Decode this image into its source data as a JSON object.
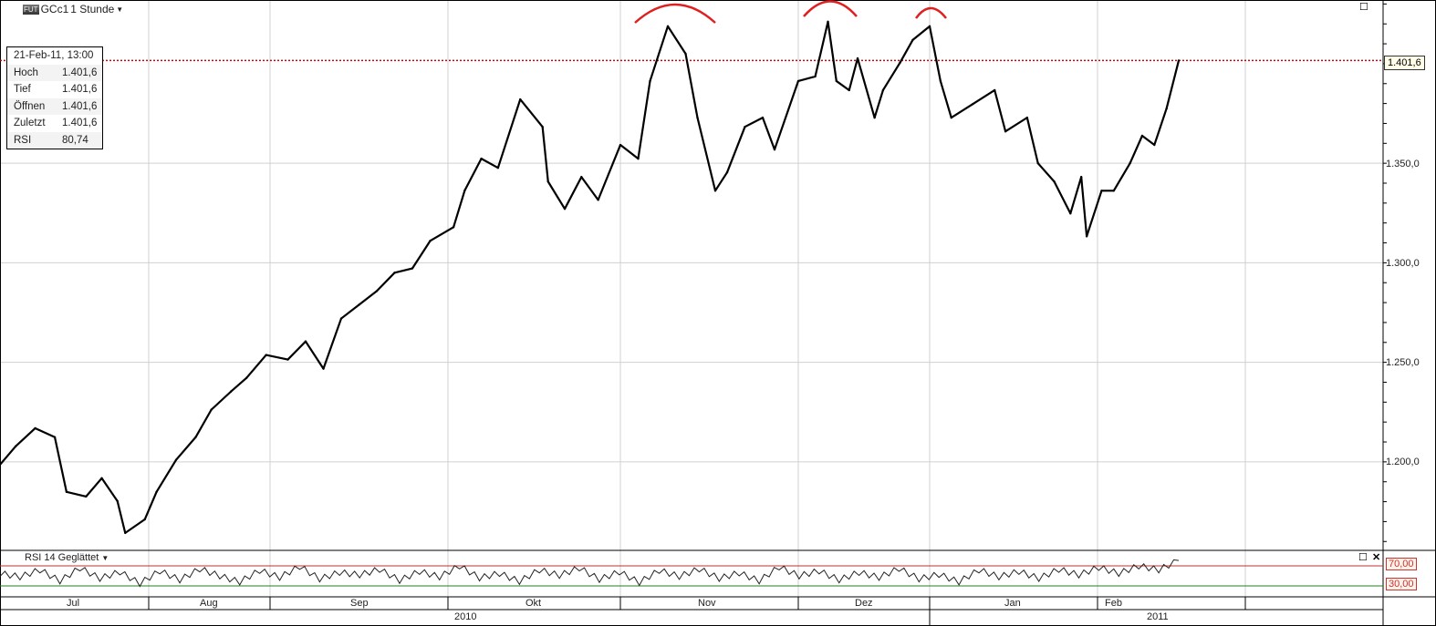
{
  "header": {
    "badge": "FUT",
    "symbol": "GCc1",
    "interval": "1 Stunde"
  },
  "info_box": {
    "date": "21-Feb-11, 13:00",
    "rows": [
      {
        "label": "Hoch",
        "value": "1.401,6"
      },
      {
        "label": "Tief",
        "value": "1.401,6"
      },
      {
        "label": "Öffnen",
        "value": "1.401,6"
      },
      {
        "label": "Zuletzt",
        "value": "1.401,6"
      },
      {
        "label": "RSI",
        "value": "80,74"
      }
    ]
  },
  "last_price_label": "1.401,6",
  "rsi_panel": {
    "title": "RSI 14 Geglättet",
    "upper_label": "70,00",
    "lower_label": "30,00"
  },
  "colors": {
    "price": "#000000",
    "last_line": "#b01010",
    "annotation": "#e02020",
    "rsi_upper": "#c03030",
    "rsi_lower": "#208020",
    "grid": "#d0d0d0"
  },
  "chart_data": {
    "type": "line",
    "ylim": [
      1156,
      1432
    ],
    "yticks": [
      "1.200,0",
      "1.250,0",
      "1.300,0",
      "1.350,0"
    ],
    "ytick_values": [
      1200,
      1250,
      1300,
      1350
    ],
    "months": [
      "Jul",
      "Aug",
      "Sep",
      "Okt",
      "Nov",
      "Dez",
      "Jan",
      "Feb"
    ],
    "years": [
      "2010",
      "2011"
    ],
    "last_price": 1401.6,
    "points": [
      [
        "2010-06-24",
        1198.6
      ],
      [
        "2010-06-28",
        1207.8
      ],
      [
        "2010-07-03",
        1216.9
      ],
      [
        "2010-07-08",
        1212.4
      ],
      [
        "2010-07-11",
        1184.9
      ],
      [
        "2010-07-16",
        1182.6
      ],
      [
        "2010-07-20",
        1191.8
      ],
      [
        "2010-07-24",
        1180.3
      ],
      [
        "2010-07-26",
        1164.3
      ],
      [
        "2010-07-31",
        1171.1
      ],
      [
        "2010-08-03",
        1184.9
      ],
      [
        "2010-08-08",
        1201.0
      ],
      [
        "2010-08-13",
        1212.4
      ],
      [
        "2010-08-17",
        1226.2
      ],
      [
        "2010-08-22",
        1235.3
      ],
      [
        "2010-08-26",
        1242.2
      ],
      [
        "2010-08-31",
        1253.7
      ],
      [
        "2010-09-04",
        1251.4
      ],
      [
        "2010-09-07",
        1260.5
      ],
      [
        "2010-09-10",
        1246.8
      ],
      [
        "2010-09-13",
        1272.0
      ],
      [
        "2010-09-16",
        1278.9
      ],
      [
        "2010-09-19",
        1285.8
      ],
      [
        "2010-09-22",
        1295.0
      ],
      [
        "2010-09-25",
        1297.2
      ],
      [
        "2010-09-28",
        1311.0
      ],
      [
        "2010-10-02",
        1317.9
      ],
      [
        "2010-10-04",
        1336.2
      ],
      [
        "2010-10-07",
        1352.3
      ],
      [
        "2010-10-10",
        1347.7
      ],
      [
        "2010-10-14",
        1382.1
      ],
      [
        "2010-10-18",
        1368.3
      ],
      [
        "2010-10-19",
        1340.8
      ],
      [
        "2010-10-22",
        1327.1
      ],
      [
        "2010-10-25",
        1343.1
      ],
      [
        "2010-10-28",
        1331.6
      ],
      [
        "2010-11-01",
        1359.2
      ],
      [
        "2010-11-04",
        1352.3
      ],
      [
        "2010-11-06",
        1391.3
      ],
      [
        "2010-11-09",
        1418.8
      ],
      [
        "2010-11-12",
        1405.0
      ],
      [
        "2010-11-14",
        1372.9
      ],
      [
        "2010-11-17",
        1336.2
      ],
      [
        "2010-11-19",
        1345.4
      ],
      [
        "2010-11-22",
        1368.3
      ],
      [
        "2010-11-25",
        1372.9
      ],
      [
        "2010-11-27",
        1356.9
      ],
      [
        "2010-12-01",
        1391.3
      ],
      [
        "2010-12-05",
        1393.6
      ],
      [
        "2010-12-08",
        1421.1
      ],
      [
        "2010-12-10",
        1391.3
      ],
      [
        "2010-12-13",
        1386.7
      ],
      [
        "2010-12-15",
        1402.7
      ],
      [
        "2010-12-19",
        1372.9
      ],
      [
        "2010-12-21",
        1386.7
      ],
      [
        "2010-12-25",
        1400.5
      ],
      [
        "2010-12-28",
        1411.9
      ],
      [
        "2011-01-01",
        1418.8
      ],
      [
        "2011-01-03",
        1391.3
      ],
      [
        "2011-01-05",
        1372.9
      ],
      [
        "2011-01-09",
        1379.8
      ],
      [
        "2011-01-13",
        1386.7
      ],
      [
        "2011-01-15",
        1366.0
      ],
      [
        "2011-01-19",
        1372.9
      ],
      [
        "2011-01-21",
        1350.0
      ],
      [
        "2011-01-24",
        1340.8
      ],
      [
        "2011-01-27",
        1324.8
      ],
      [
        "2011-01-29",
        1343.1
      ],
      [
        "2011-01-30",
        1313.3
      ],
      [
        "2011-02-02",
        1336.2
      ],
      [
        "2011-02-05",
        1336.2
      ],
      [
        "2011-02-09",
        1350.0
      ],
      [
        "2011-02-12",
        1363.8
      ],
      [
        "2011-02-15",
        1359.2
      ],
      [
        "2011-02-18",
        1377.5
      ],
      [
        "2011-02-21",
        1401.6
      ]
    ],
    "rsi": {
      "levels": [
        30,
        70
      ],
      "values": [
        55,
        48,
        62,
        40,
        66,
        45,
        58,
        35,
        60,
        42,
        64,
        50,
        38,
        61,
        47,
        69,
        44,
        57,
        52,
        63,
        41,
        59,
        48,
        70,
        46,
        55,
        39,
        62,
        51,
        66,
        43,
        58,
        37,
        61,
        49,
        64,
        45,
        56,
        40,
        68,
        50,
        60,
        42,
        57,
        47,
        65,
        44,
        53,
        38,
        62,
        48,
        59,
        45,
        63,
        52,
        67,
        55,
        70,
        62,
        80.74
      ]
    }
  }
}
